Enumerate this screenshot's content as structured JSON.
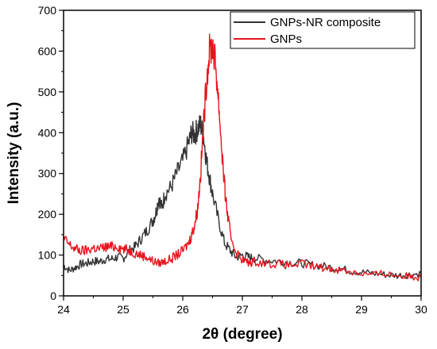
{
  "chart_data": {
    "type": "line",
    "xlabel": "2θ (degree)",
    "ylabel": "Intensity (a.u.)",
    "xlim": [
      24,
      30
    ],
    "ylim": [
      0,
      700
    ],
    "x_ticks": [
      24,
      25,
      26,
      27,
      28,
      29,
      30
    ],
    "y_ticks": [
      0,
      100,
      200,
      300,
      400,
      500,
      600,
      700
    ],
    "grid": false,
    "legend_position": "top-right",
    "series": [
      {
        "name": "GNPs-NR composite",
        "color": "#333333",
        "x": [
          24.0,
          24.1,
          24.2,
          24.3,
          24.4,
          24.5,
          24.6,
          24.7,
          24.8,
          24.9,
          25.0,
          25.1,
          25.2,
          25.3,
          25.4,
          25.5,
          25.55,
          25.6,
          25.65,
          25.7,
          25.8,
          25.9,
          26.0,
          26.1,
          26.15,
          26.2,
          26.25,
          26.3,
          26.35,
          26.4,
          26.45,
          26.5,
          26.6,
          26.7,
          26.8,
          26.9,
          27.0,
          27.1,
          27.2,
          27.4,
          27.6,
          27.8,
          28.0,
          28.2,
          28.4,
          28.6,
          28.8,
          29.0,
          29.2,
          29.4,
          29.6,
          29.8,
          30.0
        ],
        "y": [
          75,
          62,
          70,
          78,
          80,
          85,
          84,
          90,
          90,
          95,
          92,
          110,
          120,
          140,
          160,
          185,
          205,
          240,
          215,
          250,
          265,
          300,
          330,
          375,
          400,
          395,
          410,
          420,
          390,
          330,
          290,
          250,
          185,
          130,
          110,
          95,
          100,
          95,
          92,
          88,
          85,
          82,
          80,
          75,
          72,
          68,
          62,
          58,
          55,
          52,
          50,
          52,
          55
        ]
      },
      {
        "name": "GNPs",
        "color": "#e8141c",
        "x": [
          24.0,
          24.1,
          24.2,
          24.3,
          24.4,
          24.5,
          24.6,
          24.7,
          24.8,
          24.9,
          25.0,
          25.1,
          25.2,
          25.3,
          25.4,
          25.5,
          25.6,
          25.7,
          25.8,
          25.9,
          26.0,
          26.1,
          26.15,
          26.2,
          26.25,
          26.3,
          26.35,
          26.4,
          26.45,
          26.5,
          26.55,
          26.6,
          26.65,
          26.7,
          26.75,
          26.8,
          26.9,
          27.0,
          27.1,
          27.2,
          27.4,
          27.6,
          27.8,
          28.0,
          28.2,
          28.4,
          28.6,
          28.8,
          29.0,
          29.2,
          29.4,
          29.6,
          29.8,
          30.0
        ],
        "y": [
          140,
          125,
          115,
          110,
          112,
          118,
          115,
          120,
          120,
          122,
          115,
          112,
          105,
          100,
          95,
          85,
          80,
          85,
          90,
          100,
          110,
          130,
          150,
          175,
          215,
          300,
          420,
          530,
          600,
          615,
          570,
          480,
          370,
          270,
          200,
          150,
          105,
          90,
          80,
          85,
          80,
          78,
          75,
          78,
          72,
          68,
          65,
          60,
          55,
          52,
          55,
          50,
          48,
          45
        ]
      }
    ]
  }
}
